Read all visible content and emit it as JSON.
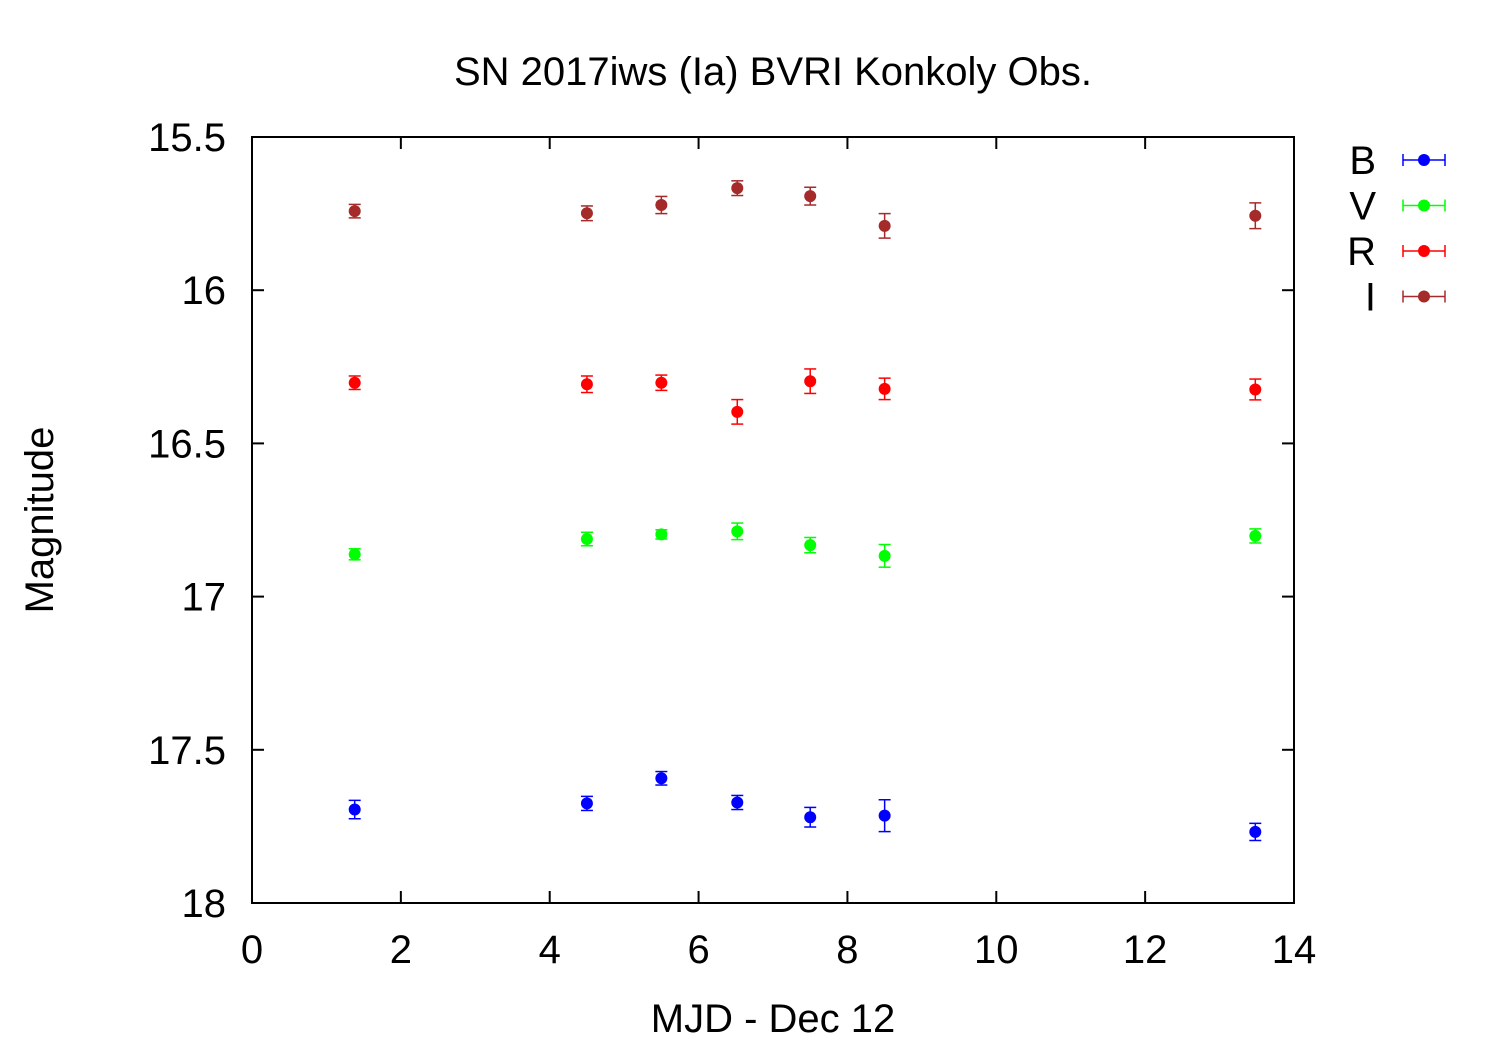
{
  "chart_data": {
    "type": "scatter",
    "title": "SN 2017iws (Ia) BVRI Konkoly Obs.",
    "xlabel": "MJD - Dec 12",
    "ylabel": "Magnitude",
    "xlim": [
      0,
      14
    ],
    "ylim": [
      18,
      15.5
    ],
    "y_inverted": true,
    "xticks": [
      0,
      2,
      4,
      6,
      8,
      10,
      12,
      14
    ],
    "yticks": [
      15.5,
      16,
      16.5,
      17,
      17.5,
      18
    ],
    "xtick_labels": [
      "0",
      "2",
      "4",
      "6",
      "8",
      "10",
      "12",
      "14"
    ],
    "ytick_labels": [
      "15.5",
      "16",
      "16.5",
      "17",
      "17.5",
      "18"
    ],
    "grid": false,
    "legend_position": "outside top-right",
    "error_bars": true,
    "series": [
      {
        "name": "B",
        "color": "#0000ff",
        "points": [
          {
            "x": 1.38,
            "y": 17.695,
            "err": 0.03
          },
          {
            "x": 4.5,
            "y": 17.675,
            "err": 0.023
          },
          {
            "x": 5.5,
            "y": 17.593,
            "err": 0.022
          },
          {
            "x": 6.52,
            "y": 17.672,
            "err": 0.023
          },
          {
            "x": 7.5,
            "y": 17.72,
            "err": 0.032
          },
          {
            "x": 8.5,
            "y": 17.715,
            "err": 0.052
          },
          {
            "x": 13.48,
            "y": 17.768,
            "err": 0.028
          }
        ]
      },
      {
        "name": "V",
        "color": "#00ff00",
        "points": [
          {
            "x": 1.38,
            "y": 16.862,
            "err": 0.018
          },
          {
            "x": 4.5,
            "y": 16.812,
            "err": 0.022
          },
          {
            "x": 5.5,
            "y": 16.797,
            "err": 0.015
          },
          {
            "x": 6.52,
            "y": 16.787,
            "err": 0.027
          },
          {
            "x": 7.5,
            "y": 16.832,
            "err": 0.025
          },
          {
            "x": 8.5,
            "y": 16.867,
            "err": 0.037
          },
          {
            "x": 13.48,
            "y": 16.802,
            "err": 0.023
          }
        ]
      },
      {
        "name": "R",
        "color": "#ff0000",
        "points": [
          {
            "x": 1.38,
            "y": 16.302,
            "err": 0.022
          },
          {
            "x": 4.5,
            "y": 16.307,
            "err": 0.027
          },
          {
            "x": 5.5,
            "y": 16.302,
            "err": 0.025
          },
          {
            "x": 6.52,
            "y": 16.397,
            "err": 0.04
          },
          {
            "x": 7.5,
            "y": 16.297,
            "err": 0.04
          },
          {
            "x": 8.5,
            "y": 16.322,
            "err": 0.035
          },
          {
            "x": 13.48,
            "y": 16.324,
            "err": 0.034
          }
        ]
      },
      {
        "name": "I",
        "color": "#a52a2a",
        "points": [
          {
            "x": 1.38,
            "y": 15.742,
            "err": 0.022
          },
          {
            "x": 4.5,
            "y": 15.749,
            "err": 0.024
          },
          {
            "x": 5.5,
            "y": 15.722,
            "err": 0.028
          },
          {
            "x": 6.52,
            "y": 15.667,
            "err": 0.024
          },
          {
            "x": 7.5,
            "y": 15.693,
            "err": 0.029
          },
          {
            "x": 8.5,
            "y": 15.79,
            "err": 0.04
          },
          {
            "x": 13.48,
            "y": 15.757,
            "err": 0.042
          }
        ]
      }
    ]
  }
}
